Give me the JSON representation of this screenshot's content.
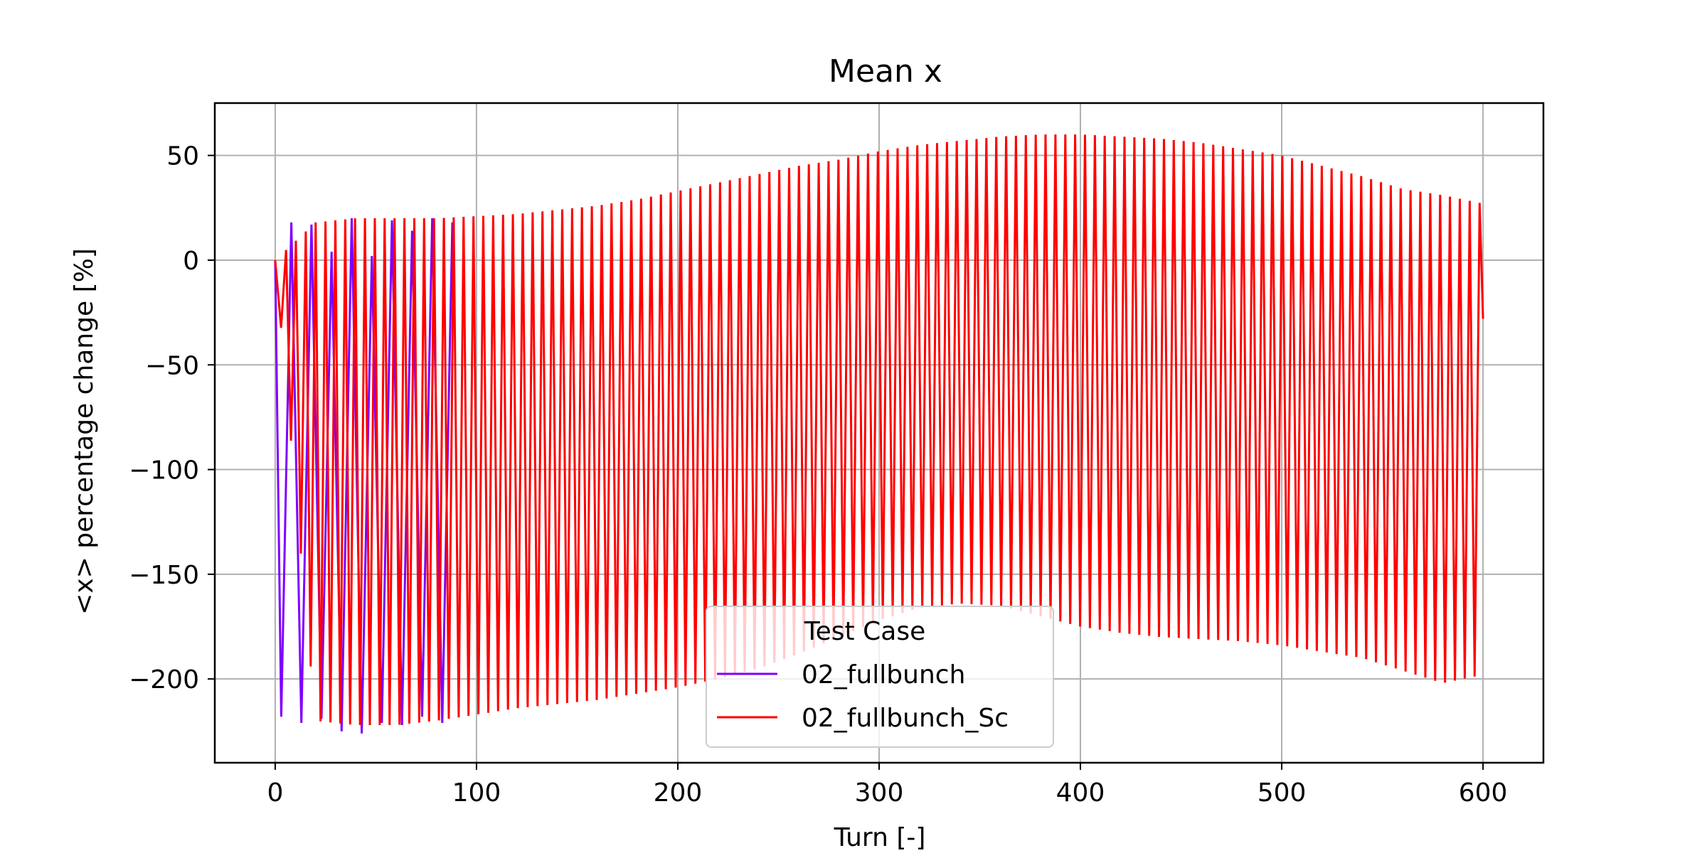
{
  "chart_data": {
    "type": "line",
    "title": "Mean x",
    "xlabel": "Turn [-]",
    "ylabel": "<x> percentage change [%]",
    "xlim": [
      -30,
      630
    ],
    "ylim": [
      -240,
      75
    ],
    "xticks": [
      0,
      100,
      200,
      300,
      400,
      500,
      600
    ],
    "yticks": [
      50,
      0,
      -50,
      -100,
      -150,
      -200
    ],
    "grid": true,
    "legend": {
      "title": "Test Case",
      "placement": "bottom-center"
    },
    "oscillation_period_turns": 4.9,
    "series": [
      {
        "name": "02_fullbunch",
        "color": "#7f00ff",
        "x": [
          0,
          3,
          8,
          13,
          18,
          23,
          28,
          33,
          38,
          43,
          48,
          53,
          58,
          63,
          68,
          73,
          78,
          83,
          88
        ],
        "y": [
          0,
          -218,
          18,
          -221,
          17,
          -219,
          4,
          -225,
          20,
          -226,
          2,
          -221,
          19,
          -222,
          14,
          -218,
          20,
          -221,
          18
        ]
      },
      {
        "name": "02_fullbunch_Sc",
        "color": "#ff0000",
        "envelope": {
          "x": [
            0,
            20,
            40,
            60,
            80,
            100,
            120,
            140,
            160,
            180,
            200,
            220,
            240,
            260,
            280,
            300,
            320,
            340,
            360,
            380,
            400,
            420,
            440,
            460,
            480,
            500,
            520,
            540,
            560,
            580,
            600
          ],
          "max": [
            0,
            18,
            20,
            20,
            20,
            21,
            22,
            24,
            26,
            29,
            33,
            37,
            41,
            45,
            48,
            52,
            55,
            57,
            59,
            60,
            60,
            59,
            58,
            56,
            53,
            50,
            45,
            40,
            34,
            31,
            27
          ],
          "min": [
            0,
            -220,
            -222,
            -222,
            -220,
            -217,
            -214,
            -212,
            -210,
            -207,
            -204,
            -200,
            -195,
            -188,
            -180,
            -172,
            -166,
            -164,
            -165,
            -170,
            -175,
            -178,
            -180,
            -181,
            -182,
            -184,
            -187,
            -190,
            -196,
            -202,
            -198
          ]
        },
        "end": {
          "x": 600,
          "y": -28
        }
      }
    ]
  }
}
